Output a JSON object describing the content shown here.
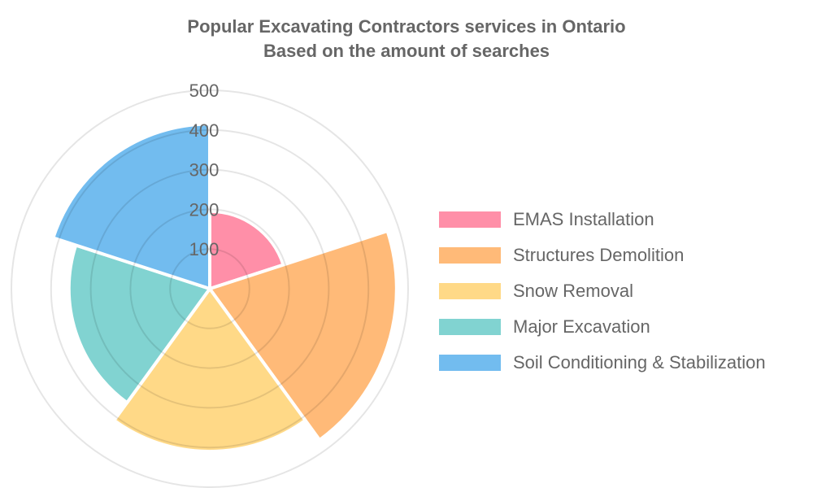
{
  "chart_data": {
    "type": "polarArea",
    "title": [
      "Popular Excavating Contractors services in Ontario",
      "Based on the amount of searches"
    ],
    "categories": [
      "EMAS Installation",
      "Structures Demolition",
      "Snow Removal",
      "Major Excavation",
      "Soil Conditioning & Stabilization"
    ],
    "values": [
      195,
      471,
      410,
      355,
      415
    ],
    "colors": [
      "#ff8fa8",
      "#ffba78",
      "#ffd987",
      "#81d3d1",
      "#72bcef"
    ],
    "rlim": [
      0,
      500
    ],
    "ticks": [
      100,
      200,
      300,
      400,
      500
    ],
    "tick_labels": [
      "100",
      "200",
      "300",
      "400",
      "500"
    ],
    "legend_position": "right",
    "grid": true
  }
}
